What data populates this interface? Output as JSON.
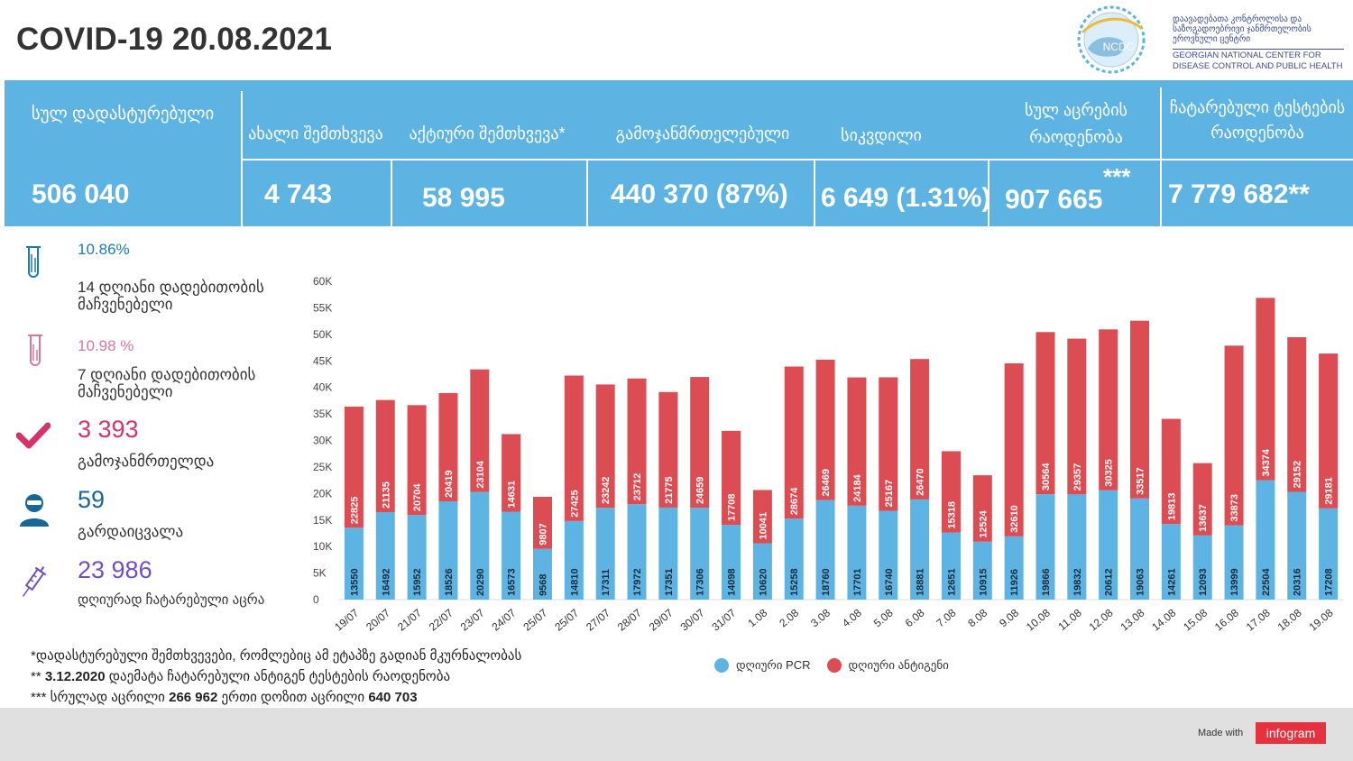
{
  "header": {
    "title": "COVID-19 20.08.2021",
    "logo": {
      "badge": "NCDC",
      "name_ka": "დაავადებათა კონტროლისა და საზოგადოებრივი ჯანმრთელობის ეროვნული ცენტრი",
      "name_en": "GEORGIAN NATIONAL CENTER FOR DISEASE CONTROL AND PUBLIC HEALTH"
    }
  },
  "stats": {
    "total_confirmed": {
      "label": "სულ დადასტურებული",
      "value": "506 040"
    },
    "new_cases": {
      "label": "ახალი შემთხვევა",
      "value": "4 743"
    },
    "active_cases": {
      "label": "აქტიური შემთხვევა*",
      "value": "58 995"
    },
    "recovered": {
      "label": "გამოჯანმრთელებული",
      "value": "440 370 (87%)"
    },
    "deaths": {
      "label": "სიკვდილი",
      "value": "6 649 (1.31%)"
    },
    "vaccinations": {
      "label": "სულ აცრების რაოდენობა",
      "value": "907 665",
      "stars": "***"
    },
    "tests": {
      "label": "ჩატარებული ტესტების რაოდენობა",
      "value": "7 779 682**"
    }
  },
  "indicators": {
    "positivity_14": {
      "value": "10.86%",
      "label": "14  დღიანი დადებითობის მაჩვენებელი",
      "icon": "test-tube-icon",
      "color": "#1a7bb5"
    },
    "positivity_7": {
      "value": "10.98 %",
      "label": "7 დღიანი დადებითობის მაჩვენებელი",
      "icon": "test-tube-icon",
      "color": "#d9779a"
    },
    "recovered": {
      "value": "3 393",
      "label": "გამოჯანმრთელდა",
      "icon": "checkmark-icon",
      "color": "#d6336c"
    },
    "died": {
      "value": "59",
      "label": "გარდაიცვალა",
      "icon": "person-icon",
      "color": "#1a6694"
    },
    "vaccinated": {
      "value": "23 986",
      "label": "დღიურად ჩატარებული აცრა",
      "icon": "syringe-icon",
      "color": "#6f4fc9"
    }
  },
  "chart_data": {
    "type": "bar",
    "stacked": true,
    "categories": [
      "19/07",
      "20/07",
      "21/07",
      "22/07",
      "23/07",
      "24/07",
      "25/07",
      "25/07",
      "27/07",
      "28/07",
      "29/07",
      "30/07",
      "31/07",
      "1.08",
      "2.08",
      "3.08",
      "4.08",
      "5.08",
      "6.08",
      "7.08",
      "8.08",
      "9.08",
      "10.08",
      "11.08",
      "12.08",
      "13.08",
      "14.08",
      "15.08",
      "16.08",
      "17.08",
      "18.08",
      "19.08"
    ],
    "series": [
      {
        "name": "დღიური PCR",
        "color": "#5db4e2",
        "values": [
          13550,
          16492,
          15952,
          18526,
          20290,
          16573,
          9568,
          14810,
          17311,
          17972,
          17351,
          17306,
          14098,
          10620,
          15258,
          18760,
          17701,
          16740,
          18881,
          12651,
          10915,
          11926,
          19866,
          19832,
          20612,
          19063,
          14261,
          12093,
          13999,
          22504,
          20316,
          17208
        ]
      },
      {
        "name": "დღიური ანტიგენი",
        "color": "#dc4c53",
        "values": [
          22825,
          21135,
          20704,
          20419,
          23104,
          14631,
          9807,
          27425,
          23242,
          23712,
          21775,
          24659,
          17708,
          10041,
          28674,
          26469,
          24184,
          25167,
          26470,
          15318,
          12524,
          32610,
          30564,
          29357,
          30325,
          33517,
          19813,
          13637,
          33873,
          34374,
          29152,
          29181
        ]
      }
    ],
    "ylim": [
      0,
      60000
    ],
    "yticks": [
      "0",
      "5K",
      "10K",
      "15K",
      "20K",
      "25K",
      "30K",
      "35K",
      "40K",
      "45K",
      "50K",
      "55K",
      "60K"
    ],
    "grid": false,
    "legend_position": "bottom"
  },
  "notes": {
    "line1": "*დადასტურებული შემთხვევები, რომლებიც ამ ეტაპზე გადიან მკურნალობას",
    "line2_prefix": "** ",
    "line2_bold": "3.12.2020",
    "line2_rest": " დაემატა ჩატარებული ანტიგენ ტესტების რაოდენობა",
    "line3_prefix": "***  სრულად აცრილი ",
    "line3_full": "266 962",
    "line3_mid": "   ერთი დოზით აცრილი ",
    "line3_one": "640 703"
  },
  "footer": {
    "made_with": "Made with",
    "brand": "infogram"
  }
}
